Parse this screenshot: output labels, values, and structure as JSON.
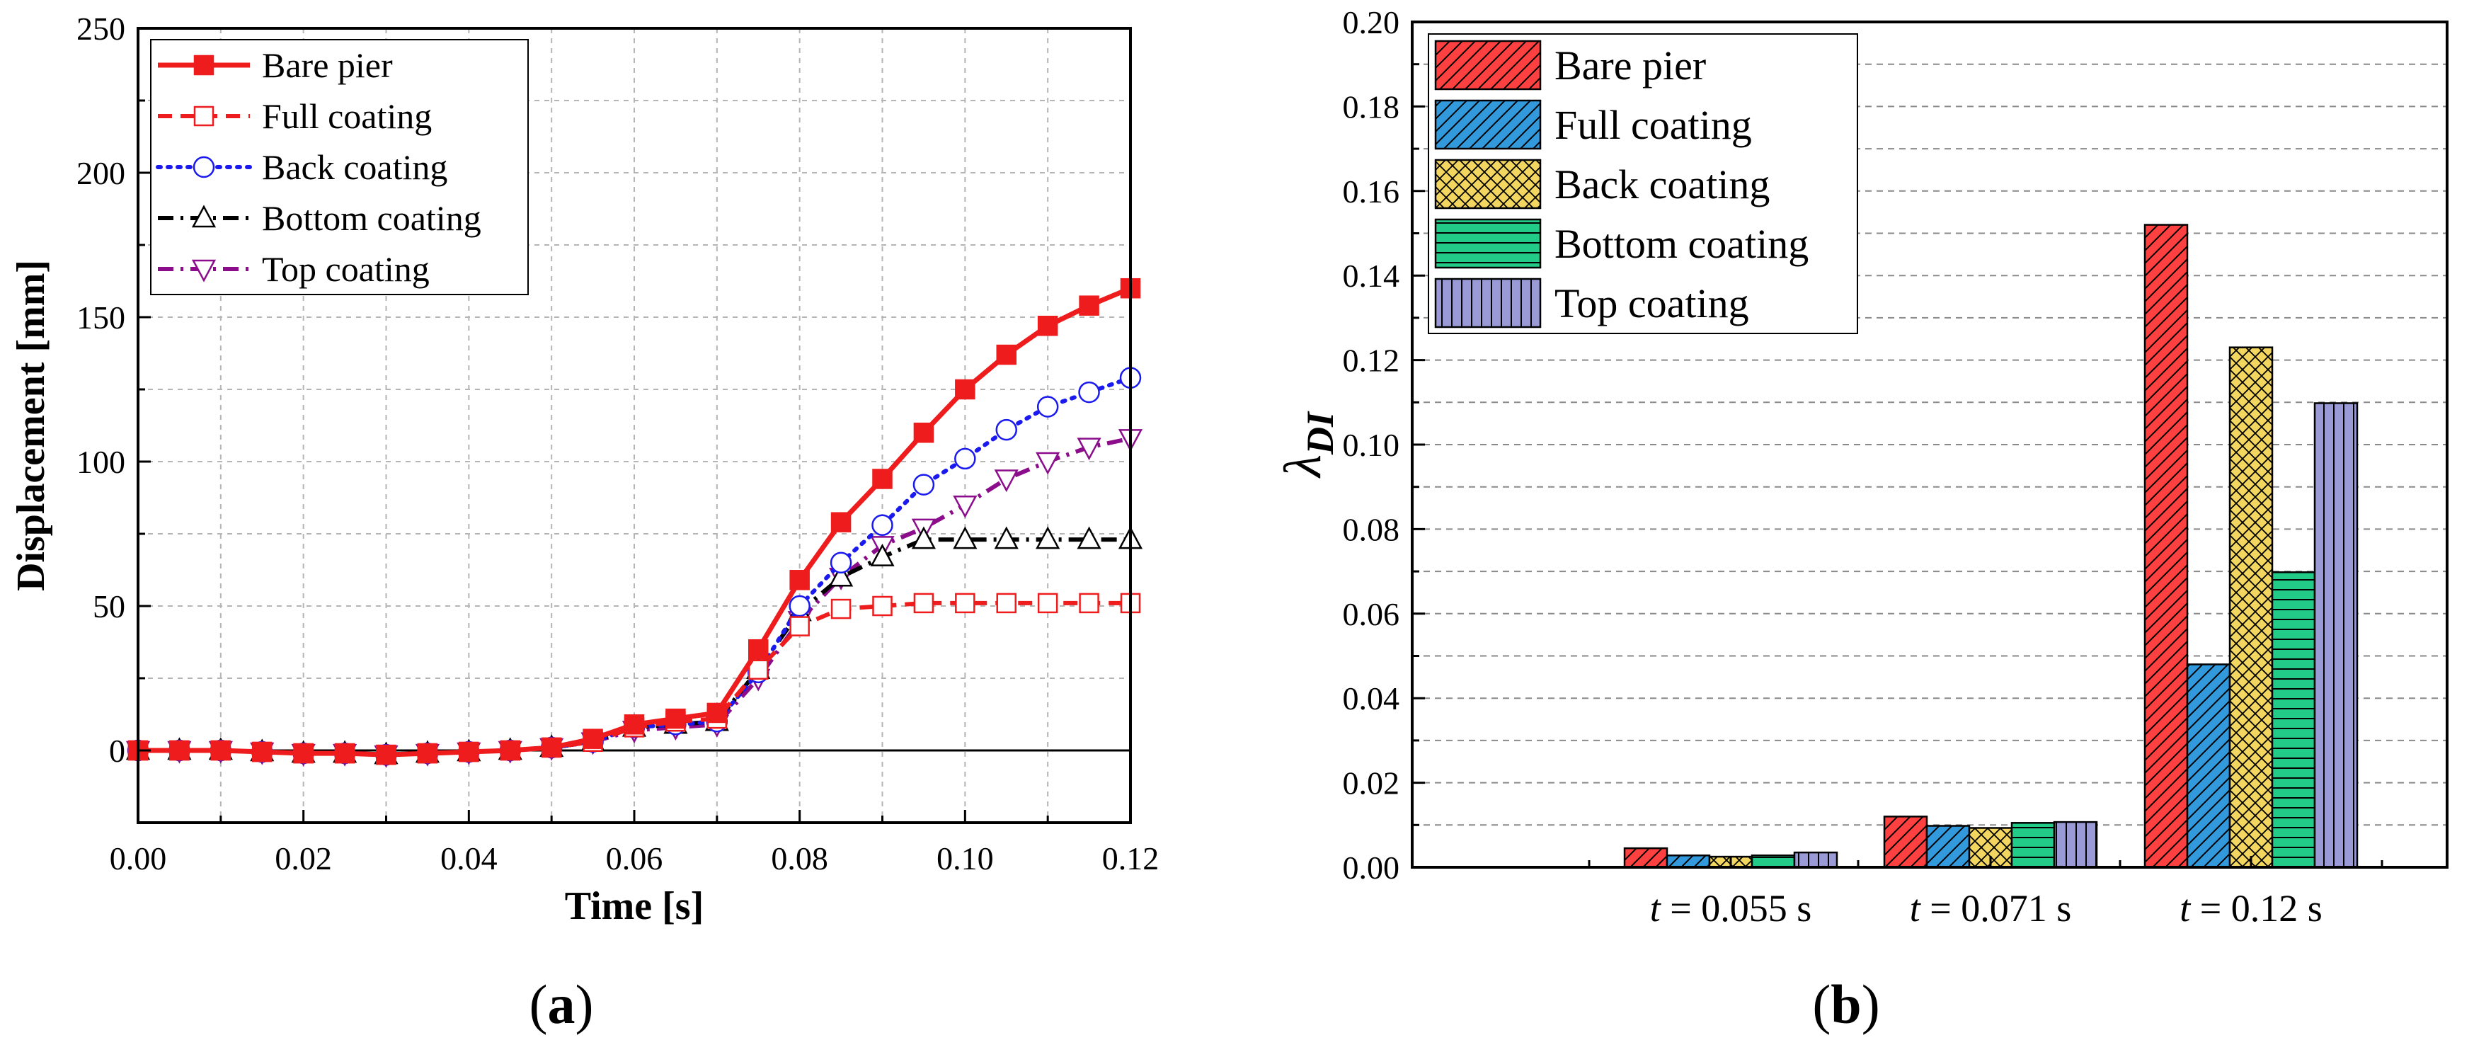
{
  "panel_labels": {
    "a_open": "(",
    "a": "a",
    "a_close": ")",
    "b_open": "(",
    "b": "b",
    "b_close": ")"
  },
  "chart_data": [
    {
      "panel": "a",
      "type": "line",
      "title": "",
      "xlabel": "Time [s]",
      "ylabel": "Displacement [mm]",
      "xlim": [
        0,
        0.12
      ],
      "ylim": [
        -25,
        250
      ],
      "xticks": [
        "0.00",
        "0.02",
        "0.04",
        "0.06",
        "0.08",
        "0.10",
        "0.12"
      ],
      "yticks": [
        "0",
        "50",
        "100",
        "150",
        "200",
        "250"
      ],
      "grid": true,
      "legend_position": "top-left",
      "x": [
        0,
        0.005,
        0.01,
        0.015,
        0.02,
        0.025,
        0.03,
        0.035,
        0.04,
        0.045,
        0.05,
        0.055,
        0.06,
        0.065,
        0.07,
        0.075,
        0.08,
        0.085,
        0.09,
        0.095,
        0.1,
        0.105,
        0.11,
        0.115,
        0.12
      ],
      "series": [
        {
          "name": "Bare pier",
          "color": "#ee1c1c",
          "dash": "solid",
          "marker": "square-filled",
          "values": [
            0,
            0,
            0,
            -0.5,
            -1,
            -1,
            -1.5,
            -1,
            -0.5,
            0,
            1,
            4,
            9,
            11,
            13,
            35,
            59,
            79,
            94,
            110,
            125,
            137,
            147,
            154,
            160
          ]
        },
        {
          "name": "Full coating",
          "color": "#ee1c1c",
          "dash": "dashed",
          "marker": "square-open",
          "values": [
            0,
            0,
            0,
            -0.5,
            -1,
            -1,
            -1.5,
            -1,
            -0.5,
            0,
            1,
            3,
            8,
            10,
            11,
            28,
            43,
            49,
            50,
            51,
            51,
            51,
            51,
            51,
            51
          ]
        },
        {
          "name": "Back coating",
          "color": "#1a1aee",
          "dash": "dotted",
          "marker": "circle-open",
          "values": [
            0,
            0,
            0,
            -0.5,
            -1,
            -1,
            -1.5,
            -1,
            -0.5,
            0,
            1,
            3,
            8,
            9,
            10,
            27,
            50,
            65,
            78,
            92,
            101,
            111,
            119,
            124,
            129
          ]
        },
        {
          "name": "Bottom coating",
          "color": "#000000",
          "dash": "dashdot",
          "marker": "triangle-up-open",
          "values": [
            0,
            0,
            0,
            -0.5,
            -1,
            -1,
            -1.5,
            -1,
            -0.5,
            0,
            1,
            3,
            8,
            9,
            10,
            28,
            48,
            60,
            67,
            73,
            73,
            73,
            73,
            73,
            73
          ]
        },
        {
          "name": "Top coating",
          "color": "#8b0d8b",
          "dash": "dashdot",
          "marker": "triangle-down-open",
          "values": [
            0,
            0,
            0,
            -0.5,
            -1,
            -1,
            -1.5,
            -1,
            -0.5,
            0,
            1,
            3,
            7,
            8,
            9,
            25,
            45,
            60,
            71,
            77,
            85,
            94,
            100,
            105,
            108
          ]
        }
      ]
    },
    {
      "panel": "b",
      "type": "bar",
      "title": "",
      "xlabel": "",
      "ylabel": "λ",
      "ylabel_sub": "DI",
      "ylim": [
        0,
        0.2
      ],
      "yticks": [
        "0.00",
        "0.02",
        "0.04",
        "0.06",
        "0.08",
        "0.10",
        "0.12",
        "0.14",
        "0.16",
        "0.18",
        "0.20"
      ],
      "grid": true,
      "legend_position": "top-left",
      "categories": [
        {
          "var": "t",
          "rest": " = 0.055 s"
        },
        {
          "var": "t",
          "rest": " = 0.071 s"
        },
        {
          "var": "t",
          "rest": " = 0.12 s"
        }
      ],
      "series": [
        {
          "name": "Bare pier",
          "color": "#ff4040",
          "pattern": "diagonal",
          "values": [
            0.0045,
            0.012,
            0.152
          ]
        },
        {
          "name": "Full coating",
          "color": "#3399dd",
          "pattern": "diagonal",
          "values": [
            0.0028,
            0.0098,
            0.048
          ]
        },
        {
          "name": "Back coating",
          "color": "#f2d660",
          "pattern": "crosshatch",
          "values": [
            0.0025,
            0.0093,
            0.123
          ]
        },
        {
          "name": "Bottom coating",
          "color": "#22cc88",
          "pattern": "horizontal",
          "values": [
            0.0028,
            0.0105,
            0.0698
          ]
        },
        {
          "name": "Top coating",
          "color": "#9a9ad6",
          "pattern": "vertical",
          "values": [
            0.0035,
            0.0107,
            0.1098
          ]
        }
      ]
    }
  ]
}
